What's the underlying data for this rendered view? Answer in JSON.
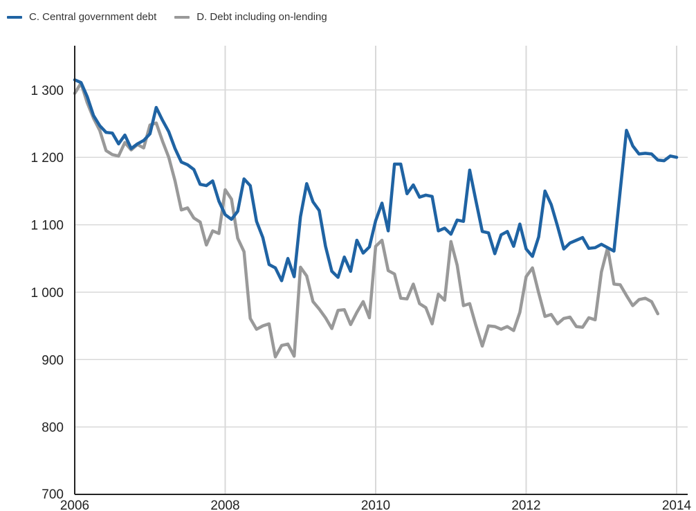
{
  "chart_data": {
    "type": "line",
    "title": "",
    "xlabel": "",
    "ylabel": "",
    "xlim": [
      2006,
      2014
    ],
    "ylim": [
      700,
      1380
    ],
    "x_ticks": [
      2006,
      2008,
      2010,
      2012,
      2014
    ],
    "y_ticks": [
      700,
      800,
      900,
      1000,
      1100,
      1200,
      1300
    ],
    "x_tick_labels": [
      "2006",
      "2008",
      "2010",
      "2012",
      "2014"
    ],
    "y_tick_labels": [
      "700",
      "800",
      "900",
      "1 000",
      "1 100",
      "1 200",
      "1 300"
    ],
    "grid": "vertical and horizontal",
    "legend_position": "top-left",
    "series": [
      {
        "name": "C. Central government debt",
        "color": "#1f63a3",
        "values": [
          1315,
          1311,
          1290,
          1262,
          1247,
          1237,
          1236,
          1220,
          1233,
          1213,
          1220,
          1225,
          1235,
          1274,
          1255,
          1238,
          1213,
          1193,
          1189,
          1182,
          1160,
          1158,
          1165,
          1135,
          1115,
          1108,
          1120,
          1168,
          1158,
          1105,
          1081,
          1041,
          1036,
          1017,
          1050,
          1023,
          1112,
          1161,
          1134,
          1121,
          1068,
          1031,
          1022,
          1052,
          1031,
          1077,
          1058,
          1067,
          1106,
          1132,
          1091,
          1190,
          1190,
          1146,
          1159,
          1141,
          1144,
          1142,
          1091,
          1095,
          1086,
          1107,
          1105,
          1181,
          1135,
          1090,
          1088,
          1057,
          1085,
          1090,
          1068,
          1101,
          1064,
          1053,
          1082,
          1150,
          1130,
          1098,
          1064,
          1073,
          1077,
          1081,
          1065,
          1066,
          1071,
          1066,
          1061,
          1150,
          1240,
          1217,
          1205,
          1206,
          1205,
          1196,
          1195,
          1202,
          1200
        ]
      },
      {
        "name": "D. Debt including on-lending",
        "color": "#999999",
        "values": [
          1295,
          1310,
          1281,
          1258,
          1240,
          1210,
          1204,
          1202,
          1222,
          1211,
          1219,
          1214,
          1248,
          1251,
          1224,
          1200,
          1165,
          1122,
          1125,
          1110,
          1104,
          1070,
          1091,
          1087,
          1152,
          1138,
          1080,
          1060,
          961,
          945,
          950,
          953,
          904,
          921,
          923,
          905,
          1037,
          1024,
          986,
          975,
          962,
          946,
          973,
          974,
          952,
          970,
          986,
          962,
          1068,
          1077,
          1032,
          1027,
          991,
          990,
          1012,
          983,
          977,
          953,
          997,
          988,
          1075,
          1040,
          980,
          983,
          950,
          920,
          950,
          949,
          945,
          949,
          943,
          970,
          1023,
          1036,
          999,
          964,
          967,
          953,
          961,
          963,
          949,
          948,
          962,
          959,
          1030,
          1066,
          1012,
          1011,
          995,
          980,
          989,
          991,
          986,
          968
        ]
      }
    ]
  }
}
